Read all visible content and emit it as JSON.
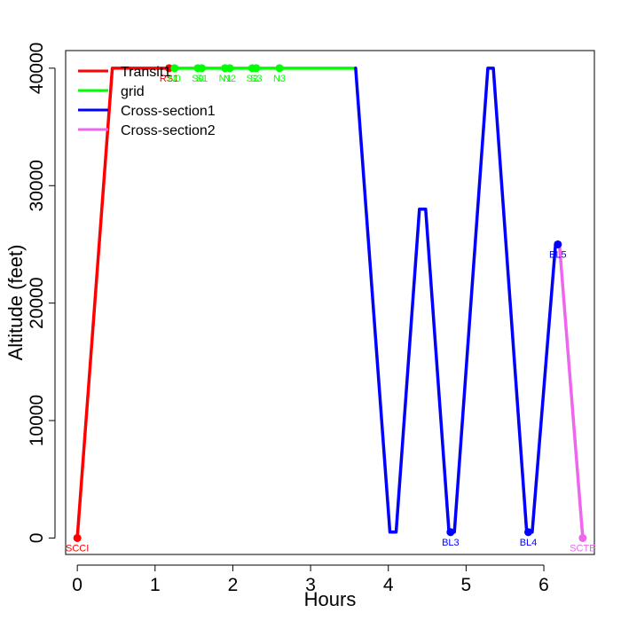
{
  "chart_data": {
    "type": "line",
    "xlabel": "Hours",
    "ylabel": "Altitude (feet)",
    "xlim": [
      -0.15,
      6.65
    ],
    "ylim": [
      -1400,
      41500
    ],
    "x_ticks": [
      0,
      1,
      2,
      3,
      4,
      5,
      6
    ],
    "y_ticks": [
      0,
      10000,
      20000,
      30000,
      40000
    ],
    "grid": false,
    "legend_position": "top-left",
    "series": [
      {
        "name": "Transit1",
        "color": "#ff0000",
        "x": [
          0,
          0.45,
          1.25
        ],
        "y": [
          0,
          40000,
          40000
        ]
      },
      {
        "name": "grid",
        "color": "#00ff00",
        "x": [
          1.25,
          3.58
        ],
        "y": [
          40000,
          40000
        ]
      },
      {
        "name": "Cross-section1",
        "color": "#0000ff",
        "x": [
          3.58,
          4.02,
          4.1,
          4.4,
          4.48,
          4.78,
          4.85,
          5.28,
          5.35,
          5.78,
          5.85,
          6.15,
          6.2
        ],
        "y": [
          40000,
          500,
          500,
          28000,
          28000,
          500,
          500,
          40000,
          40000,
          500,
          500,
          25000,
          25000
        ]
      },
      {
        "name": "Cross-section2",
        "color": "#ee66ee",
        "x": [
          6.2,
          6.5
        ],
        "y": [
          25000,
          0
        ]
      }
    ],
    "points": [
      {
        "label": "SCCI",
        "x": 0,
        "y": 0,
        "color": "#ff0000"
      },
      {
        "label": "RS1",
        "x": 1.18,
        "y": 40000,
        "color": "#ff0000"
      },
      {
        "label": "N0",
        "x": 1.25,
        "y": 40000,
        "color": "#00ff00"
      },
      {
        "label": "S0",
        "x": 1.55,
        "y": 40000,
        "color": "#00ff00"
      },
      {
        "label": "S1",
        "x": 1.6,
        "y": 40000,
        "color": "#00ff00"
      },
      {
        "label": "N1",
        "x": 1.9,
        "y": 40000,
        "color": "#00ff00"
      },
      {
        "label": "N2",
        "x": 1.96,
        "y": 40000,
        "color": "#00ff00"
      },
      {
        "label": "S2",
        "x": 2.25,
        "y": 40000,
        "color": "#00ff00"
      },
      {
        "label": "S3",
        "x": 2.3,
        "y": 40000,
        "color": "#00ff00"
      },
      {
        "label": "N3",
        "x": 2.6,
        "y": 40000,
        "color": "#00ff00"
      },
      {
        "label": "BL3",
        "x": 4.8,
        "y": 500,
        "color": "#0000ff"
      },
      {
        "label": "BL4",
        "x": 5.8,
        "y": 500,
        "color": "#0000ff"
      },
      {
        "label": "BL5",
        "x": 6.18,
        "y": 25000,
        "color": "#0000ff"
      },
      {
        "label": "SCTE",
        "x": 6.5,
        "y": 0,
        "color": "#ee66ee"
      }
    ]
  }
}
